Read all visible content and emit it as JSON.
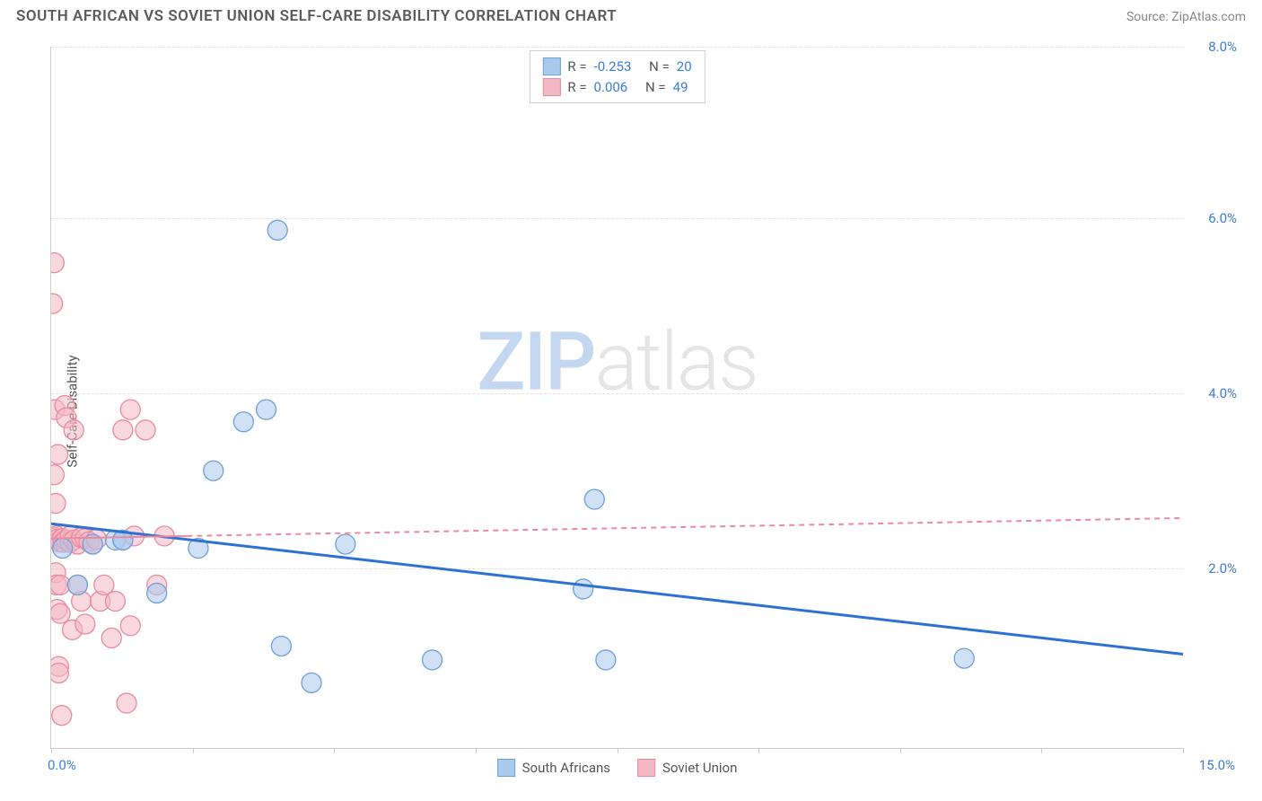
{
  "title": "SOUTH AFRICAN VS SOVIET UNION SELF-CARE DISABILITY CORRELATION CHART",
  "source_label": "Source:",
  "source_value": "ZipAtlas.com",
  "ylabel": "Self-Care Disability",
  "watermark_part1": "ZIP",
  "watermark_part2": "atlas",
  "chart": {
    "type": "scatter",
    "xlim": [
      0,
      15
    ],
    "ylim": [
      0,
      8.6
    ],
    "x_ticks": [
      0,
      1.875,
      3.75,
      5.625,
      7.5,
      9.375,
      11.25,
      13.125,
      15
    ],
    "x_tick_labels": {
      "0": "0.0%",
      "15": "15.0%"
    },
    "y_gridlines": [
      2.2,
      4.35,
      6.5,
      8.6
    ],
    "y_tick_labels": {
      "2.2": "2.0%",
      "4.35": "4.0%",
      "6.5": "6.0%",
      "8.6": "8.0%"
    },
    "background_color": "#ffffff",
    "grid_color": "#e0e0e0",
    "axis_color": "#cccccc",
    "tick_label_color": "#3b7dd8",
    "marker_radius": 11,
    "series": [
      {
        "name": "south_africans",
        "label": "South Africans",
        "fill": "#a9c9ed",
        "fill_opacity": 0.55,
        "stroke": "#6ea0d8",
        "trend_color": "#2d72d2",
        "trend_width": 3,
        "trend_dash": "none",
        "trend_start_y": 2.75,
        "trend_end_y": 1.15,
        "points": [
          [
            0.15,
            2.45
          ],
          [
            0.35,
            2.0
          ],
          [
            0.55,
            2.5
          ],
          [
            0.85,
            2.55
          ],
          [
            0.95,
            2.55
          ],
          [
            0.95,
            2.55
          ],
          [
            1.4,
            1.9
          ],
          [
            1.95,
            2.45
          ],
          [
            2.15,
            3.4
          ],
          [
            2.55,
            4.0
          ],
          [
            2.85,
            4.15
          ],
          [
            3.0,
            6.35
          ],
          [
            3.05,
            1.25
          ],
          [
            3.45,
            0.8
          ],
          [
            3.9,
            2.5
          ],
          [
            5.05,
            1.08
          ],
          [
            7.05,
            1.95
          ],
          [
            7.2,
            3.05
          ],
          [
            7.35,
            1.08
          ],
          [
            12.1,
            1.1
          ]
        ]
      },
      {
        "name": "soviet_union",
        "label": "Soviet Union",
        "fill": "#f4b8c5",
        "fill_opacity": 0.55,
        "stroke": "#e98aa0",
        "trend_color": "#e98aa0",
        "trend_width": 2,
        "trend_dash": "6,5",
        "trend_solid_until_x": 1.8,
        "trend_start_y": 2.57,
        "trend_end_y": 2.82,
        "points": [
          [
            0.02,
            5.45
          ],
          [
            0.04,
            5.95
          ],
          [
            0.04,
            3.35
          ],
          [
            0.05,
            4.15
          ],
          [
            0.05,
            2.58
          ],
          [
            0.06,
            3.0
          ],
          [
            0.06,
            2.15
          ],
          [
            0.07,
            2.6
          ],
          [
            0.07,
            2.0
          ],
          [
            0.08,
            2.56
          ],
          [
            0.08,
            1.7
          ],
          [
            0.09,
            3.6
          ],
          [
            0.1,
            2.53
          ],
          [
            0.1,
            1.0
          ],
          [
            0.1,
            0.92
          ],
          [
            0.12,
            2.0
          ],
          [
            0.12,
            1.65
          ],
          [
            0.14,
            0.4
          ],
          [
            0.15,
            2.57
          ],
          [
            0.16,
            2.52
          ],
          [
            0.18,
            4.2
          ],
          [
            0.2,
            4.05
          ],
          [
            0.2,
            2.55
          ],
          [
            0.25,
            2.52
          ],
          [
            0.25,
            2.6
          ],
          [
            0.28,
            1.45
          ],
          [
            0.3,
            2.55
          ],
          [
            0.3,
            3.9
          ],
          [
            0.35,
            2.5
          ],
          [
            0.35,
            2.0
          ],
          [
            0.4,
            2.58
          ],
          [
            0.4,
            1.8
          ],
          [
            0.45,
            2.57
          ],
          [
            0.45,
            1.52
          ],
          [
            0.5,
            2.53
          ],
          [
            0.55,
            2.5
          ],
          [
            0.6,
            2.56
          ],
          [
            0.65,
            1.8
          ],
          [
            0.7,
            2.0
          ],
          [
            0.8,
            1.35
          ],
          [
            0.85,
            1.8
          ],
          [
            0.95,
            3.9
          ],
          [
            1.0,
            0.55
          ],
          [
            1.05,
            1.5
          ],
          [
            1.05,
            4.15
          ],
          [
            1.1,
            2.6
          ],
          [
            1.25,
            3.9
          ],
          [
            1.4,
            2.0
          ],
          [
            1.5,
            2.6
          ]
        ]
      }
    ],
    "legend_top": [
      {
        "swatch_fill": "#a9c9ed",
        "swatch_stroke": "#6ea0d8",
        "r_label": "R =",
        "r_value": "-0.253",
        "n_label": "N =",
        "n_value": "20"
      },
      {
        "swatch_fill": "#f4b8c5",
        "swatch_stroke": "#e98aa0",
        "r_label": "R =",
        "r_value": "0.006",
        "n_label": "N =",
        "n_value": "49"
      }
    ],
    "legend_bottom": [
      {
        "swatch_fill": "#a9c9ed",
        "swatch_stroke": "#6ea0d8",
        "label": "South Africans"
      },
      {
        "swatch_fill": "#f4b8c5",
        "swatch_stroke": "#e98aa0",
        "label": "Soviet Union"
      }
    ]
  }
}
